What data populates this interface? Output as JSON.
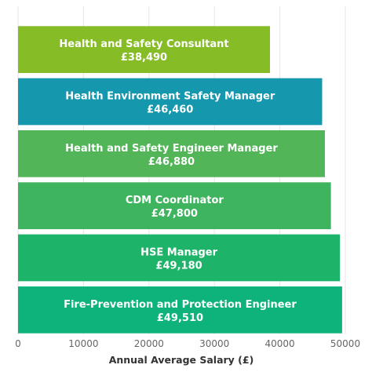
{
  "chart_data": {
    "type": "bar",
    "orientation": "horizontal",
    "categories": [
      "Health and Safety Consultant",
      "Health Environment Safety Manager",
      "Health and Safety Engineer Manager",
      "CDM Coordinator",
      "HSE Manager",
      "Fire-Prevention and Protection Engineer"
    ],
    "values": [
      38490,
      46460,
      46880,
      47800,
      49180,
      49510
    ],
    "value_labels": [
      "£38,490",
      "£46,460",
      "£46,880",
      "£47,800",
      "£49,180",
      "£49,510"
    ],
    "bar_colors": [
      "#86bc25",
      "#1597ad",
      "#52b558",
      "#3fb45f",
      "#1db46a",
      "#0db37a"
    ],
    "xlabel": "Annual Average Salary (£)",
    "ylabel": "",
    "title": "",
    "xlim": [
      0,
      50000
    ],
    "xticks": [
      0,
      10000,
      20000,
      30000,
      40000,
      50000
    ],
    "xtick_labels": [
      "0",
      "10000",
      "20000",
      "30000",
      "40000",
      "50000"
    ],
    "grid": true
  }
}
